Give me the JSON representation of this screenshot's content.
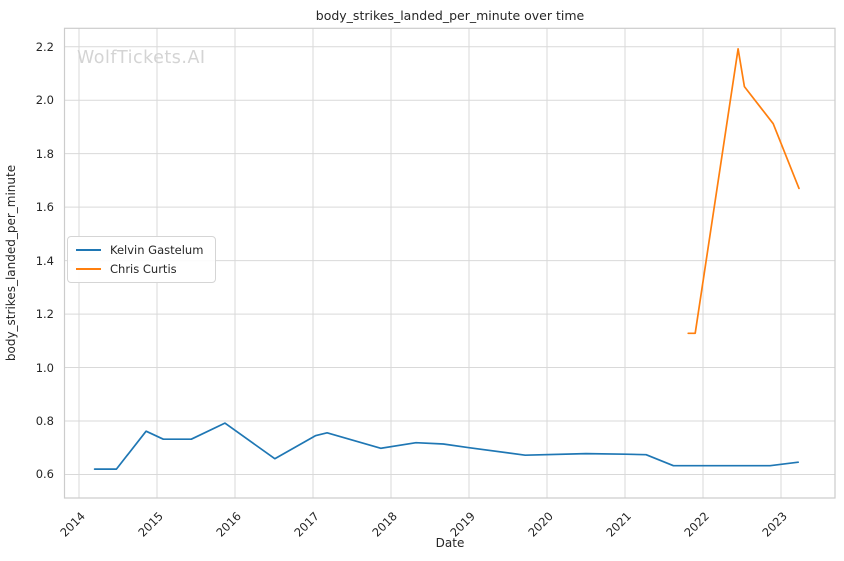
{
  "watermark": "WolfTickets.AI",
  "chart_data": {
    "type": "line",
    "title": "body_strikes_landed_per_minute over time",
    "xlabel": "Date",
    "ylabel": "body_strikes_landed_per_minute",
    "xlim": [
      2013.814,
      2023.692
    ],
    "ylim": [
      0.512,
      2.269
    ],
    "xticks": [
      2014,
      2015,
      2016,
      2017,
      2018,
      2019,
      2020,
      2021,
      2022,
      2023
    ],
    "yticks": [
      0.6,
      0.8,
      1.0,
      1.2,
      1.4,
      1.6,
      1.8,
      2.0,
      2.2
    ],
    "grid": true,
    "grid_color": "#d9d9d9",
    "spine_color": "#cccccc",
    "background": "#ffffff",
    "legend_position": "center-left",
    "series": [
      {
        "name": "Kelvin Gastelum",
        "color": "#1f77b4",
        "x": [
          2014.2,
          2014.48,
          2014.86,
          2015.08,
          2015.44,
          2015.87,
          2016.51,
          2017.03,
          2017.18,
          2017.87,
          2018.32,
          2018.67,
          2019.0,
          2019.72,
          2020.5,
          2021.0,
          2021.27,
          2021.62,
          2022.86,
          2023.22
        ],
        "y": [
          0.62,
          0.62,
          0.762,
          0.732,
          0.732,
          0.792,
          0.659,
          0.745,
          0.756,
          0.698,
          0.719,
          0.714,
          0.7,
          0.672,
          0.678,
          0.676,
          0.674,
          0.633,
          0.633,
          0.646
        ]
      },
      {
        "name": "Chris Curtis",
        "color": "#ff7f0e",
        "x": [
          2021.81,
          2021.9,
          2022.45,
          2022.53,
          2022.9,
          2023.23
        ],
        "y": [
          1.128,
          1.128,
          2.192,
          2.051,
          1.912,
          1.67
        ]
      }
    ]
  }
}
